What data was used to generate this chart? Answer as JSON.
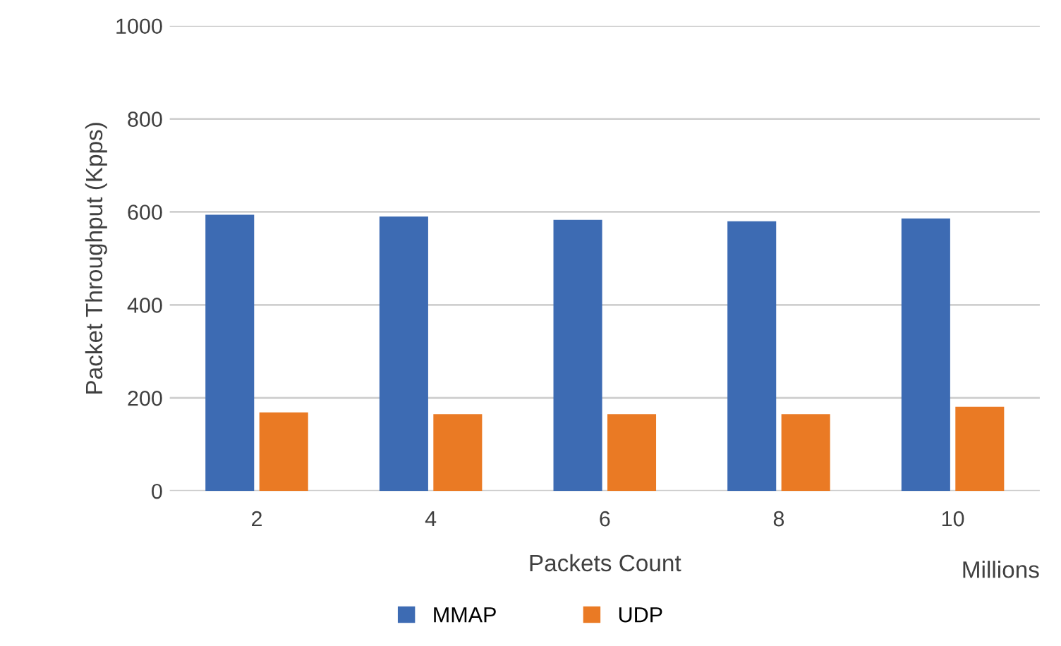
{
  "chart_data": {
    "type": "bar",
    "categories": [
      "2",
      "4",
      "6",
      "8",
      "10"
    ],
    "series": [
      {
        "name": "MMAP",
        "color": "#3d6bb3",
        "values": [
          594,
          590,
          583,
          580,
          586
        ]
      },
      {
        "name": "UDP",
        "color": "#ea7a24",
        "values": [
          169,
          165,
          165,
          165,
          181
        ]
      }
    ],
    "xlabel": "Packets Count",
    "ylabel": "Packet Throughput (Kpps)",
    "annotations": [
      "Millions"
    ],
    "ylim": [
      0,
      1000
    ],
    "yticks": [
      0,
      200,
      400,
      600,
      800,
      1000
    ],
    "grid": "y",
    "legend": "bottom"
  }
}
